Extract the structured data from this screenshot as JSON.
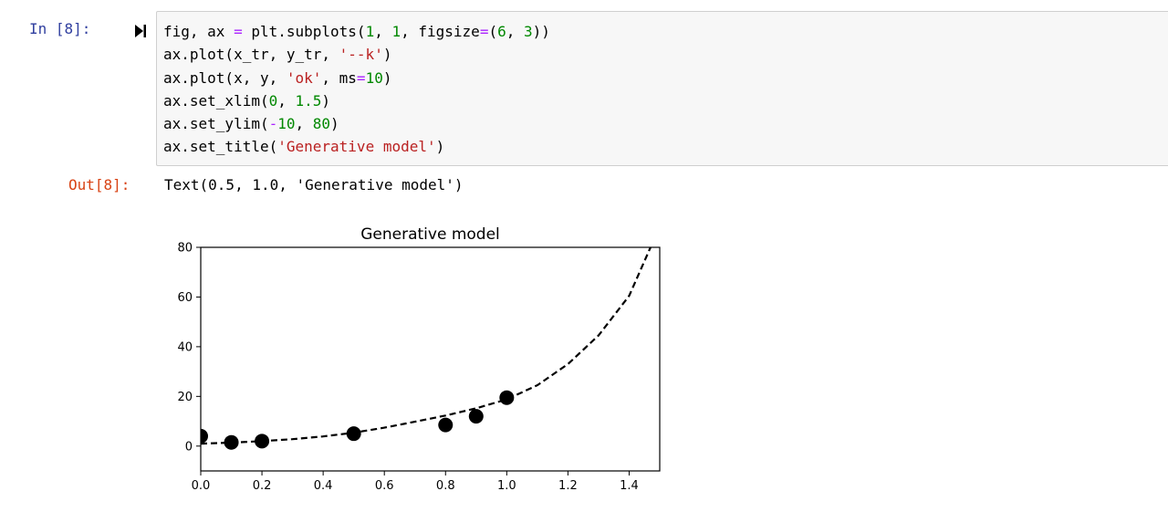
{
  "input_cell": {
    "prompt": "In [8]:",
    "code_lines": [
      [
        {
          "t": "fig, ax "
        },
        {
          "t": "=",
          "c": "op"
        },
        {
          "t": " plt.subplots("
        },
        {
          "t": "1",
          "c": "num"
        },
        {
          "t": ", "
        },
        {
          "t": "1",
          "c": "num"
        },
        {
          "t": ", figsize"
        },
        {
          "t": "=",
          "c": "op"
        },
        {
          "t": "("
        },
        {
          "t": "6",
          "c": "num"
        },
        {
          "t": ", "
        },
        {
          "t": "3",
          "c": "num"
        },
        {
          "t": "))"
        }
      ],
      [
        {
          "t": "ax.plot(x_tr, y_tr, "
        },
        {
          "t": "'--k'",
          "c": "str"
        },
        {
          "t": ")"
        }
      ],
      [
        {
          "t": "ax.plot(x, y, "
        },
        {
          "t": "'ok'",
          "c": "str"
        },
        {
          "t": ", ms"
        },
        {
          "t": "=",
          "c": "op"
        },
        {
          "t": "10",
          "c": "num"
        },
        {
          "t": ")"
        }
      ],
      [
        {
          "t": "ax.set_xlim("
        },
        {
          "t": "0",
          "c": "num"
        },
        {
          "t": ", "
        },
        {
          "t": "1.5",
          "c": "num"
        },
        {
          "t": ")"
        }
      ],
      [
        {
          "t": "ax.set_ylim("
        },
        {
          "t": "-",
          "c": "op"
        },
        {
          "t": "10",
          "c": "num"
        },
        {
          "t": ", "
        },
        {
          "t": "80",
          "c": "num"
        },
        {
          "t": ")"
        }
      ],
      [
        {
          "t": "ax.set_title("
        },
        {
          "t": "'Generative model'",
          "c": "str"
        },
        {
          "t": ")"
        }
      ]
    ]
  },
  "output_cell": {
    "prompt": "Out[8]:",
    "text": "Text(0.5, 1.0, 'Generative model')"
  },
  "colors": {
    "prompt_in": "#303f9f",
    "prompt_out": "#d84315",
    "code_bg": "#f7f7f7",
    "keyword_op": "#aa22ff",
    "number": "#008800",
    "string": "#ba2121"
  },
  "icons": {
    "run": "run-cell-icon"
  },
  "chart_data": {
    "type": "scatter",
    "title": "Generative model",
    "xlabel": "",
    "ylabel": "",
    "xlim": [
      0,
      1.5
    ],
    "ylim": [
      -10,
      80
    ],
    "x_ticks": [
      0.0,
      0.2,
      0.4,
      0.6,
      0.8,
      1.0,
      1.2,
      1.4
    ],
    "x_tick_labels": [
      "0.0",
      "0.2",
      "0.4",
      "0.6",
      "0.8",
      "1.0",
      "1.2",
      "1.4"
    ],
    "y_ticks": [
      0,
      20,
      40,
      60,
      80
    ],
    "y_tick_labels": [
      "0",
      "20",
      "40",
      "60",
      "80"
    ],
    "grid": false,
    "series": [
      {
        "style": "dashed-line",
        "color": "#000000",
        "x": [
          0.0,
          0.1,
          0.2,
          0.3,
          0.4,
          0.5,
          0.6,
          0.7,
          0.8,
          0.9,
          1.0,
          1.1,
          1.2,
          1.3,
          1.4,
          1.47
        ],
        "y": [
          1.0,
          1.4,
          2.0,
          2.8,
          3.9,
          5.4,
          7.4,
          9.8,
          12.3,
          15.2,
          18.8,
          24.5,
          33.0,
          44.5,
          60.5,
          80.0
        ]
      },
      {
        "style": "markers",
        "color": "#000000",
        "x": [
          0.0,
          0.1,
          0.2,
          0.5,
          0.8,
          0.9,
          1.0
        ],
        "y": [
          4,
          1.5,
          2,
          5,
          8.5,
          12,
          19.5
        ]
      }
    ]
  }
}
